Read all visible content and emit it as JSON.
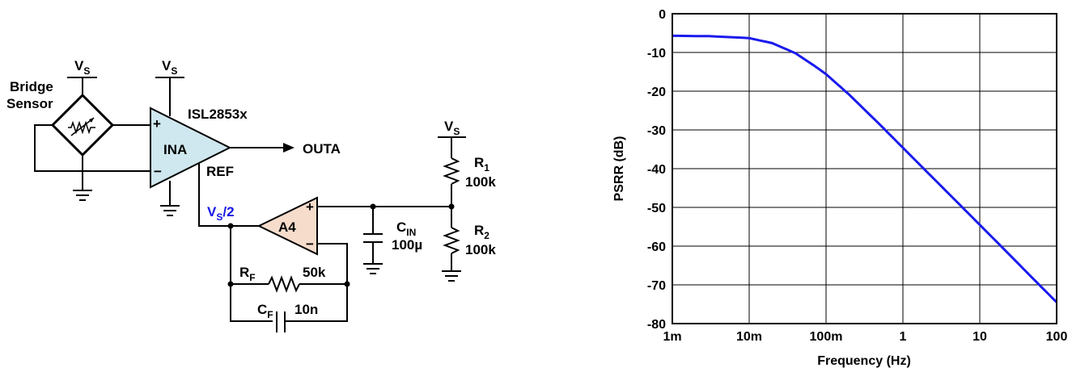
{
  "schematic": {
    "bridge_label_1": "Bridge",
    "bridge_label_2": "Sensor",
    "vs_main": "V",
    "vs_sub": "S",
    "ina_label": "INA",
    "ina_part": "ISL2853x",
    "plus": "+",
    "minus": "−",
    "output_label": "OUTA",
    "ref_label": "REF",
    "vs2_main": "V",
    "vs2_sub": "S",
    "vs2_tail": "/2",
    "a4_label": "A4",
    "cin_main": "C",
    "cin_sub": "IN",
    "cin_value": "100µ",
    "r1_main": "R",
    "r1_sub": "1",
    "r1_value": "100k",
    "r2_main": "R",
    "r2_sub": "2",
    "r2_value": "100k",
    "rf_main": "R",
    "rf_sub": "F",
    "rf_value": "50k",
    "cf_main": "C",
    "cf_sub": "F",
    "cf_value": "10n",
    "colors": {
      "ina_fill": "#cfe7ee",
      "a4_fill": "#f6dccb",
      "vs2_text": "#1414e6"
    }
  },
  "chart_data": {
    "type": "line",
    "xlabel": "Frequency (Hz)",
    "ylabel": "PSRR (dB)",
    "x_scale": "log",
    "xlim": [
      0.001,
      100
    ],
    "ylim": [
      -80,
      0
    ],
    "x_ticks": [
      "1m",
      "10m",
      "100m",
      "1",
      "10",
      "100"
    ],
    "y_ticks": [
      "0",
      "-10",
      "-20",
      "-30",
      "-40",
      "-50",
      "-60",
      "-70",
      "-80"
    ],
    "grid": true,
    "series": [
      {
        "color": "#1a1aee",
        "x": [
          0.001,
          0.003,
          0.01,
          0.02,
          0.04,
          0.07,
          0.1,
          0.2,
          0.5,
          1,
          2,
          5,
          10,
          20,
          50,
          100
        ],
        "y": [
          -5.7,
          -5.8,
          -6.3,
          -7.6,
          -10.2,
          -13.4,
          -15.6,
          -20.9,
          -28.6,
          -34.6,
          -40.6,
          -48.5,
          -54.5,
          -60.5,
          -68.5,
          -74.5
        ]
      }
    ]
  }
}
